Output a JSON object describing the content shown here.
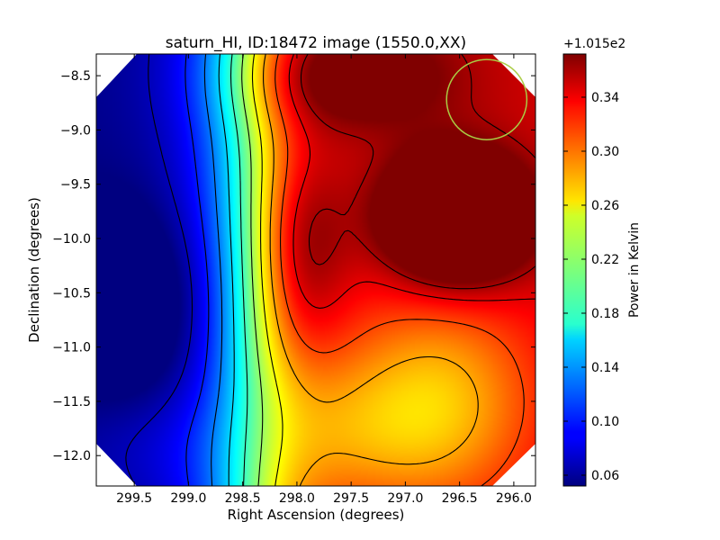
{
  "chart_data": {
    "type": "heatmap",
    "title": "saturn_HI, ID:18472 image (1550.0,XX)",
    "xlabel": "Right Ascension (degrees)",
    "ylabel": "Declination (degrees)",
    "xlim": [
      299.85,
      295.8
    ],
    "ylim": [
      -12.28,
      -8.3
    ],
    "x_ticks": [
      299.5,
      299.0,
      298.5,
      298.0,
      297.5,
      297.0,
      296.5,
      296.0
    ],
    "x_tick_labels": [
      "299.5",
      "299.0",
      "298.5",
      "298.0",
      "297.5",
      "297.0",
      "296.5",
      "296.0"
    ],
    "y_ticks": [
      -8.5,
      -9.0,
      -9.5,
      -10.0,
      -10.5,
      -11.0,
      -11.5,
      -12.0
    ],
    "y_tick_labels": [
      "−8.5",
      "−9.0",
      "−9.5",
      "−10.0",
      "−10.5",
      "−11.0",
      "−11.5",
      "−12.0"
    ],
    "colorbar": {
      "label": "Power in Kelvin",
      "offset_label": "+1.015e2",
      "range": [
        0.052,
        0.372
      ],
      "ticks": [
        0.06,
        0.1,
        0.14,
        0.18,
        0.22,
        0.26,
        0.3,
        0.34
      ],
      "tick_labels": [
        "0.06",
        "0.10",
        "0.14",
        "0.18",
        "0.22",
        "0.26",
        "0.30",
        "0.34"
      ],
      "colormap": "jet"
    },
    "features": {
      "peak": {
        "ra": 296.55,
        "dec": -9.8,
        "value": 0.372
      },
      "minimum": {
        "ra": 299.35,
        "dec": -10.7,
        "value": 0.052
      },
      "beam_circle": {
        "ra": 296.25,
        "dec": -8.72,
        "radius_deg": 0.37,
        "color": "#aacc44"
      }
    },
    "grid": false,
    "contours": true
  }
}
